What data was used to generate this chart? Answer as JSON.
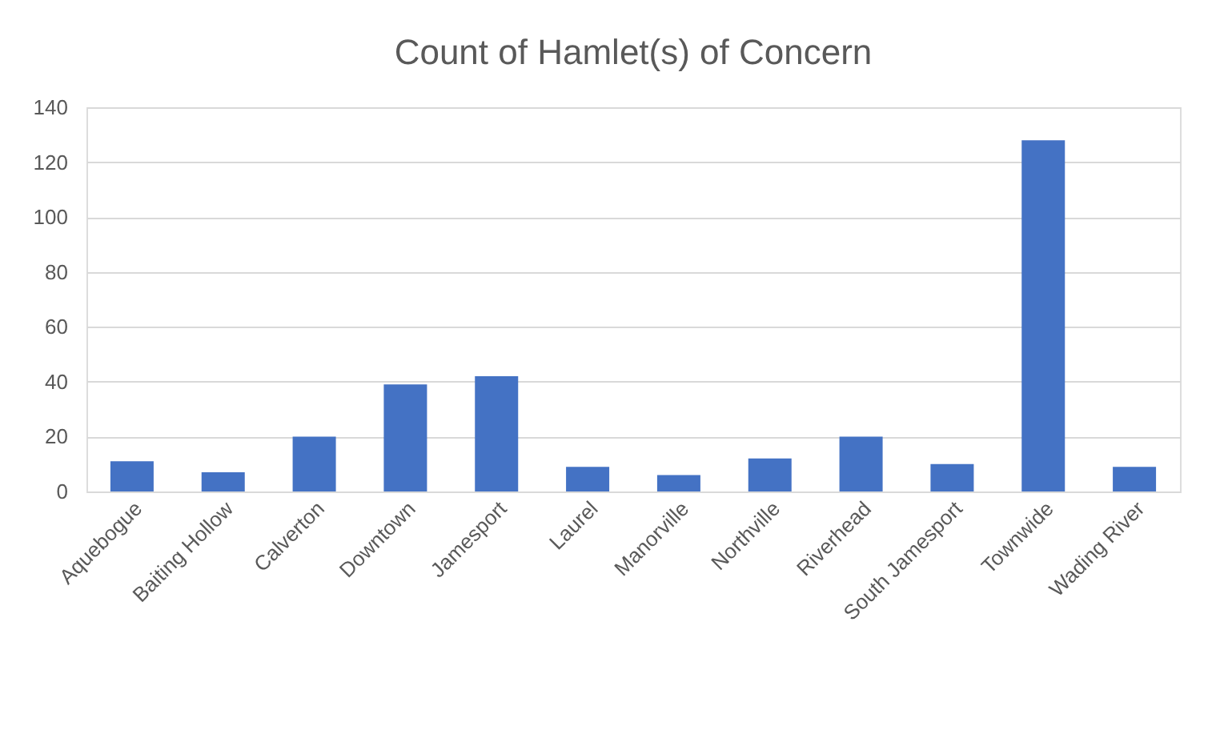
{
  "chart_data": {
    "type": "bar",
    "title": "Count of Hamlet(s) of Concern",
    "categories": [
      "Aquebogue",
      "Baiting Hollow",
      "Calverton",
      "Downtown",
      "Jamesport",
      "Laurel",
      "Manorville",
      "Northville",
      "Riverhead",
      "South Jamesport",
      "Townwide",
      "Wading River"
    ],
    "values": [
      11,
      7,
      20,
      39,
      42,
      9,
      6,
      12,
      20,
      10,
      128,
      9
    ],
    "color": "#4472c4",
    "ylim": [
      0,
      140
    ],
    "yticks": [
      0,
      20,
      40,
      60,
      80,
      100,
      120,
      140
    ],
    "grid": "y"
  }
}
